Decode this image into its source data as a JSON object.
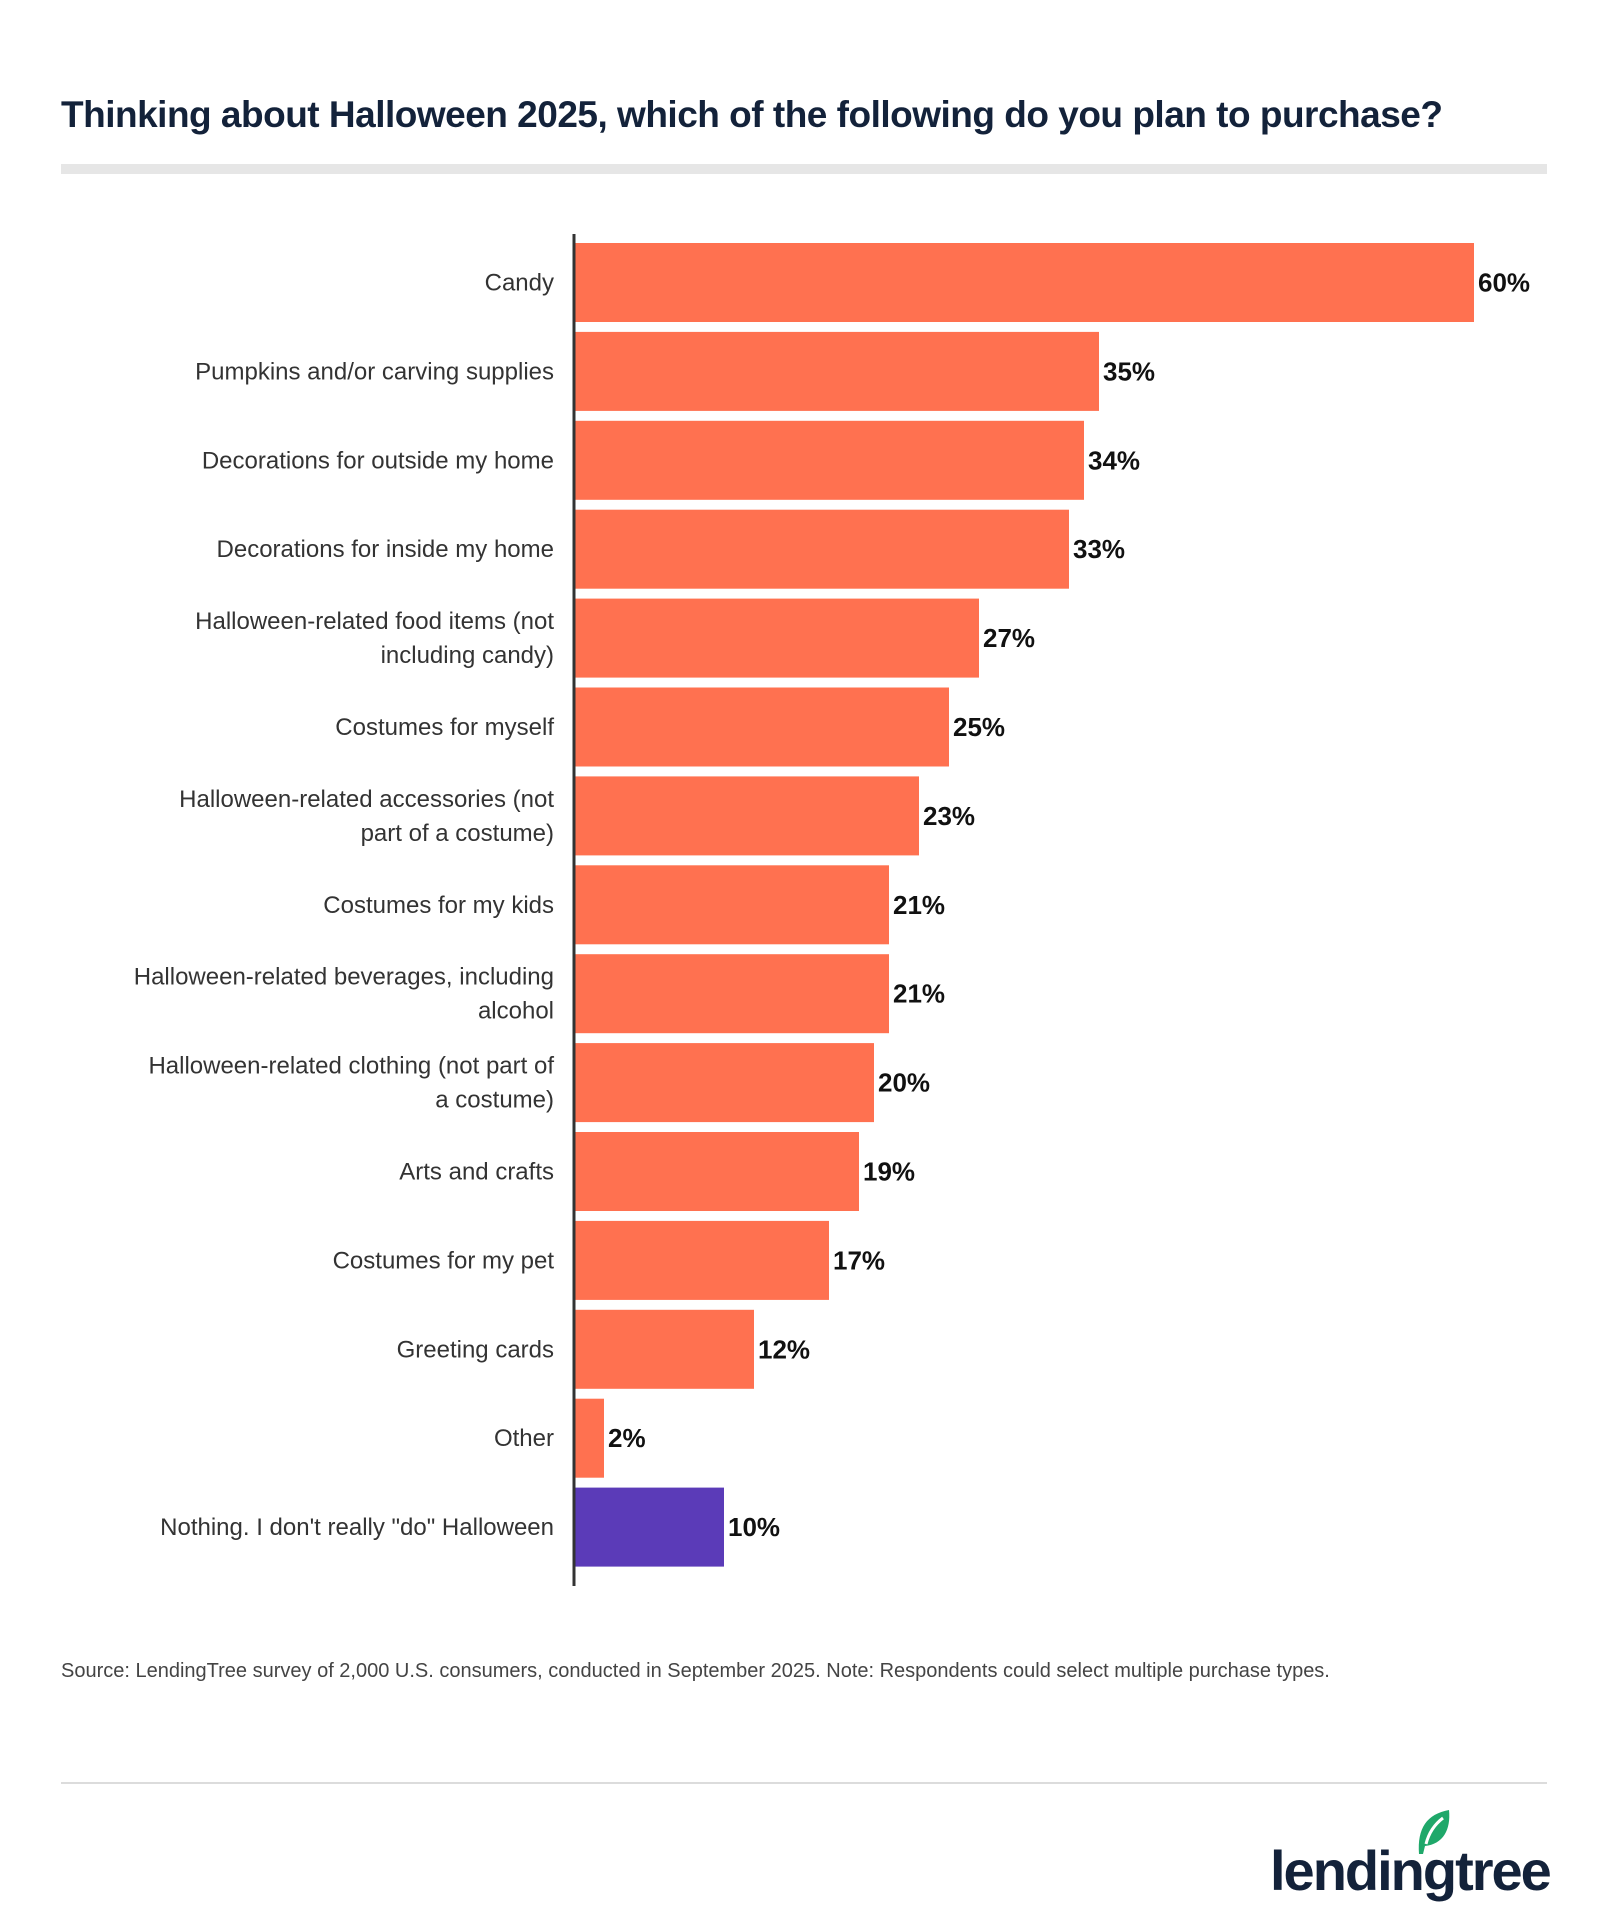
{
  "title": "Thinking about Halloween 2025, which of the following do you plan to purchase?",
  "source": "Source: LendingTree survey of 2,000 U.S. consumers, conducted in September 2025. Note: Respondents could select multiple purchase types.",
  "logo": "lendingtree",
  "colors": {
    "primary": "#ff7150",
    "highlight": "#5b3bb8",
    "logo_leaf": "#1fa86a"
  },
  "chart_data": {
    "type": "bar",
    "orientation": "horizontal",
    "title": "Thinking about Halloween 2025, which of the following do you plan to purchase?",
    "xlim": [
      0,
      60
    ],
    "grid": false,
    "categories": [
      [
        "Candy"
      ],
      [
        "Pumpkins and/or carving supplies"
      ],
      [
        "Decorations for outside my home"
      ],
      [
        "Decorations for inside my home"
      ],
      [
        "Halloween-related food items (not",
        "including candy)"
      ],
      [
        "Costumes for myself"
      ],
      [
        "Halloween-related accessories (not",
        "part of a costume)"
      ],
      [
        "Costumes for my kids"
      ],
      [
        "Halloween-related beverages, including",
        "alcohol"
      ],
      [
        "Halloween-related clothing (not part of",
        "a costume)"
      ],
      [
        "Arts and crafts"
      ],
      [
        "Costumes for my pet"
      ],
      [
        "Greeting cards"
      ],
      [
        "Other"
      ],
      [
        "Nothing. I don't really \"do\" Halloween"
      ]
    ],
    "values": [
      60,
      35,
      34,
      33,
      27,
      25,
      23,
      21,
      21,
      20,
      19,
      17,
      12,
      2,
      10
    ],
    "labels": [
      "60%",
      "35%",
      "34%",
      "33%",
      "27%",
      "25%",
      "23%",
      "21%",
      "21%",
      "20%",
      "19%",
      "17%",
      "12%",
      "2%",
      "10%"
    ],
    "highlighted_index": 14
  }
}
